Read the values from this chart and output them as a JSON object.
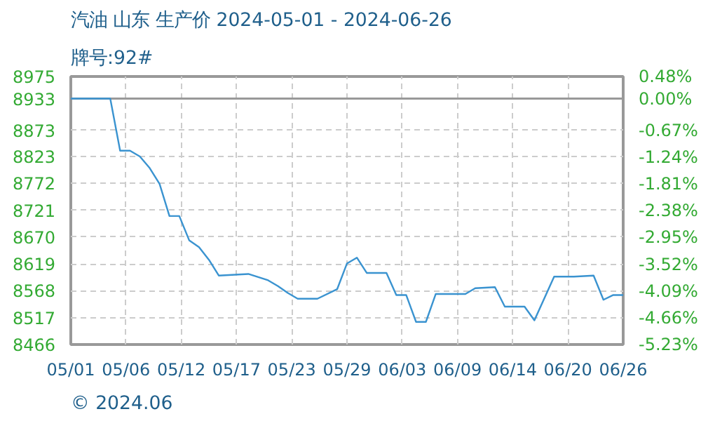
{
  "chart_data": {
    "type": "line",
    "title": "汽油 山东 生产价 2024-05-01 - 2024-06-26",
    "subtitle": "牌号:92#",
    "annotations": [
      "© 2024.06"
    ],
    "x": [
      "2024-05-01",
      "2024-05-05",
      "2024-05-06",
      "2024-05-07",
      "2024-05-08",
      "2024-05-09",
      "2024-05-10",
      "2024-05-11",
      "2024-05-12",
      "2024-05-13",
      "2024-05-14",
      "2024-05-15",
      "2024-05-16",
      "2024-05-19",
      "2024-05-21",
      "2024-05-22",
      "2024-05-23",
      "2024-05-24",
      "2024-05-26",
      "2024-05-28",
      "2024-05-29",
      "2024-05-30",
      "2024-05-31",
      "2024-06-02",
      "2024-06-03",
      "2024-06-04",
      "2024-06-05",
      "2024-06-06",
      "2024-06-07",
      "2024-06-10",
      "2024-06-11",
      "2024-06-13",
      "2024-06-14",
      "2024-06-16",
      "2024-06-17",
      "2024-06-19",
      "2024-06-21",
      "2024-06-23",
      "2024-06-24",
      "2024-06-25",
      "2024-06-26"
    ],
    "series": [
      {
        "color": "#3a93d0",
        "values": [
          8933,
          8933,
          8834,
          8834,
          8823,
          8801,
          8771,
          8710,
          8710,
          8664,
          8651,
          8627,
          8597,
          8600,
          8588,
          8577,
          8564,
          8553,
          8553,
          8571,
          8620,
          8631,
          8602,
          8602,
          8560,
          8560,
          8509,
          8509,
          8562,
          8562,
          8573,
          8575,
          8538,
          8538,
          8512,
          8595,
          8595,
          8597,
          8551,
          8560,
          8560
        ]
      }
    ],
    "xlim": [
      "2024-05-01",
      "2024-06-26"
    ],
    "xticks": [
      {
        "value": "2024-05-01",
        "label": "05/01"
      },
      {
        "value": "2024-05-06T14:24",
        "label": "05/06"
      },
      {
        "value": "2024-05-12T04:48",
        "label": "05/12"
      },
      {
        "value": "2024-05-17T19:12",
        "label": "05/17"
      },
      {
        "value": "2024-05-23T09:36",
        "label": "05/23"
      },
      {
        "value": "2024-05-29",
        "label": "05/29"
      },
      {
        "value": "2024-06-03T14:24",
        "label": "06/03"
      },
      {
        "value": "2024-06-09T04:48",
        "label": "06/09"
      },
      {
        "value": "2024-06-14T19:12",
        "label": "06/14"
      },
      {
        "value": "2024-06-20T09:36",
        "label": "06/20"
      },
      {
        "value": "2024-06-26",
        "label": "06/26"
      }
    ],
    "ylim": [
      8466,
      8975
    ],
    "yticks": [
      8466,
      8517,
      8568,
      8619,
      8670,
      8721,
      8772,
      8823,
      8873,
      8933,
      8975
    ],
    "y2lim": [
      -5.23,
      0.48
    ],
    "y2ticks": [
      {
        "value": -5.23,
        "label": "-5.23%"
      },
      {
        "value": -4.66,
        "label": "-4.66%"
      },
      {
        "value": -4.09,
        "label": "-4.09%"
      },
      {
        "value": -3.52,
        "label": "-3.52%"
      },
      {
        "value": -2.95,
        "label": "-2.95%"
      },
      {
        "value": -2.38,
        "label": "-2.38%"
      },
      {
        "value": -1.81,
        "label": "-1.81%"
      },
      {
        "value": -1.24,
        "label": "-1.24%"
      },
      {
        "value": -0.67,
        "label": "-0.67%"
      },
      {
        "value": 0.0,
        "label": "0.00%"
      },
      {
        "value": 0.48,
        "label": "0.48%"
      }
    ],
    "ref_lines": [
      {
        "axis": "y",
        "value": 8933,
        "color": "#999999"
      }
    ],
    "grid": true,
    "line_style": "solid"
  }
}
